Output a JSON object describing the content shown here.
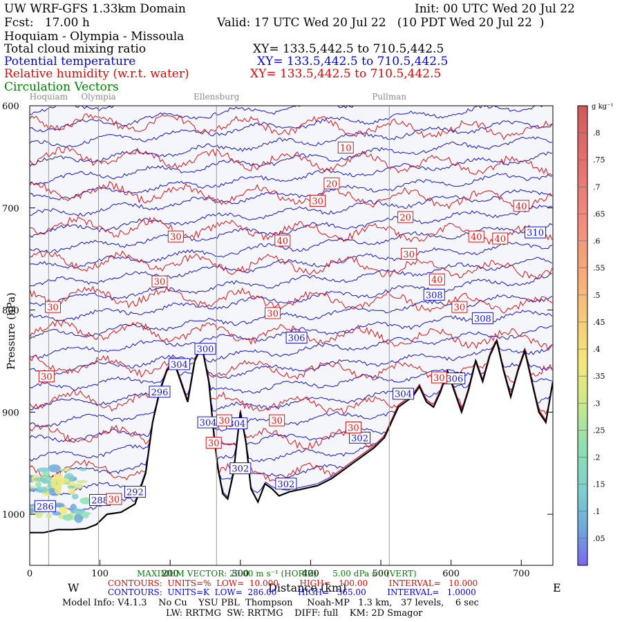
{
  "header": {
    "domain": "UW WRF-GFS 1.33km Domain",
    "init": "Init: 00 UTC Wed 20 Jul 22",
    "fcst": "Fcst:   17.00 h",
    "valid": "Valid: 17 UTC Wed 20 Jul 22   (10 PDT Wed 20 Jul 22  )",
    "route": "Hoquiam - Olympia - Missoula",
    "var1": "Total cloud mixing ratio",
    "var1_xy": "XY= 133.5,442.5 to 710.5,442.5",
    "var2": "Potential temperature",
    "var2_xy": "XY= 133.5,442.5 to 710.5,442.5",
    "var3": "Relative humidity (w.r.t. water)",
    "var3_xy": "XY= 133.5,442.5 to 710.5,442.5",
    "var4": "Circulation Vectors"
  },
  "footer": {
    "max_vector": "MAXIMUM VECTOR: 20.00 m s⁻¹ (HORIZ)      5.00 dPa s⁻¹ (VERT)",
    "red_contours": "CONTOURS:  UNITS=%  LOW=  10.000        HIGH=   100.00        INTERVAL=   10.000",
    "blue_contours": "CONTOURS:  UNITS=K  LOW=  286.00        HIGH=   365.00        INTERVAL=   1.0000",
    "model_info": "Model Info: V4.1.3    No Cu    YSU PBL  Thompson     Noah-MP   1.3 km,   37 levels,    6 sec",
    "physics": "LW: RRTMG  SW: RRTMG    DIFF: full    KM: 2D Smagor"
  },
  "chart_data": {
    "type": "cross-section",
    "xlabel": "Distance (km)",
    "ylabel": "Pressure (hPa)",
    "x_ticks": [
      "0",
      "100",
      "200",
      "300",
      "400",
      "500",
      "600",
      "700"
    ],
    "y_ticks": [
      "600",
      "700",
      "800",
      "900",
      "1000"
    ],
    "xlim": [
      0,
      745
    ],
    "ylim_hpa": [
      600,
      1050
    ],
    "west_label": "W",
    "east_label": "E",
    "locations": [
      {
        "name": "Hoquiam",
        "km": 27
      },
      {
        "name": "Olympia",
        "km": 98
      },
      {
        "name": "Ellensburg",
        "km": 266
      },
      {
        "name": "Pullman",
        "km": 512
      }
    ],
    "terrain_surface_hpa": [
      [
        0,
        1018
      ],
      [
        20,
        1018
      ],
      [
        40,
        1015
      ],
      [
        60,
        1015
      ],
      [
        80,
        1014
      ],
      [
        95,
        1010
      ],
      [
        110,
        1000
      ],
      [
        130,
        998
      ],
      [
        150,
        990
      ],
      [
        165,
        960
      ],
      [
        175,
        910
      ],
      [
        185,
        880
      ],
      [
        195,
        860
      ],
      [
        205,
        850
      ],
      [
        215,
        870
      ],
      [
        225,
        890
      ],
      [
        235,
        850
      ],
      [
        245,
        835
      ],
      [
        255,
        870
      ],
      [
        262,
        920
      ],
      [
        268,
        955
      ],
      [
        275,
        980
      ],
      [
        282,
        985
      ],
      [
        290,
        960
      ],
      [
        300,
        900
      ],
      [
        308,
        930
      ],
      [
        315,
        975
      ],
      [
        325,
        988
      ],
      [
        335,
        970
      ],
      [
        345,
        975
      ],
      [
        355,
        982
      ],
      [
        370,
        978
      ],
      [
        390,
        975
      ],
      [
        410,
        972
      ],
      [
        430,
        965
      ],
      [
        450,
        955
      ],
      [
        470,
        945
      ],
      [
        490,
        935
      ],
      [
        505,
        925
      ],
      [
        515,
        910
      ],
      [
        525,
        895
      ],
      [
        535,
        890
      ],
      [
        545,
        885
      ],
      [
        555,
        875
      ],
      [
        565,
        890
      ],
      [
        575,
        895
      ],
      [
        585,
        880
      ],
      [
        595,
        860
      ],
      [
        605,
        880
      ],
      [
        615,
        900
      ],
      [
        625,
        878
      ],
      [
        635,
        850
      ],
      [
        645,
        870
      ],
      [
        655,
        845
      ],
      [
        665,
        830
      ],
      [
        675,
        860
      ],
      [
        685,
        885
      ],
      [
        695,
        860
      ],
      [
        705,
        840
      ],
      [
        715,
        870
      ],
      [
        725,
        900
      ],
      [
        735,
        910
      ],
      [
        745,
        870
      ]
    ],
    "theta_contours_K": {
      "low": 286,
      "high": 365,
      "interval": 1
    },
    "theta_labels": [
      {
        "text": "286",
        "km": 22,
        "hpa": 992
      },
      {
        "text": "288",
        "km": 100,
        "hpa": 986
      },
      {
        "text": "292",
        "km": 150,
        "hpa": 978
      },
      {
        "text": "296",
        "km": 185,
        "hpa": 880
      },
      {
        "text": "300",
        "km": 250,
        "hpa": 838
      },
      {
        "text": "302",
        "km": 300,
        "hpa": 955
      },
      {
        "text": "302",
        "km": 365,
        "hpa": 970
      },
      {
        "text": "302",
        "km": 470,
        "hpa": 925
      },
      {
        "text": "304",
        "km": 213,
        "hpa": 853
      },
      {
        "text": "304",
        "km": 254,
        "hpa": 910
      },
      {
        "text": "304",
        "km": 295,
        "hpa": 911
      },
      {
        "text": "304",
        "km": 532,
        "hpa": 882
      },
      {
        "text": "306",
        "km": 380,
        "hpa": 827
      },
      {
        "text": "306",
        "km": 605,
        "hpa": 867
      },
      {
        "text": "308",
        "km": 576,
        "hpa": 785
      },
      {
        "text": "308",
        "km": 645,
        "hpa": 808
      },
      {
        "text": "310",
        "km": 720,
        "hpa": 724
      }
    ],
    "rh_contours_pct": {
      "low": 10,
      "high": 100,
      "interval": 10
    },
    "rh_labels": [
      {
        "text": "10",
        "km": 450,
        "hpa": 641
      },
      {
        "text": "20",
        "km": 430,
        "hpa": 676
      },
      {
        "text": "30",
        "km": 410,
        "hpa": 693
      },
      {
        "text": "20",
        "km": 535,
        "hpa": 709
      },
      {
        "text": "40",
        "km": 700,
        "hpa": 698
      },
      {
        "text": "30",
        "km": 208,
        "hpa": 728
      },
      {
        "text": "40",
        "km": 360,
        "hpa": 732
      },
      {
        "text": "40",
        "km": 636,
        "hpa": 728
      },
      {
        "text": "40",
        "km": 670,
        "hpa": 730
      },
      {
        "text": "30",
        "km": 540,
        "hpa": 745
      },
      {
        "text": "40",
        "km": 580,
        "hpa": 770
      },
      {
        "text": "30",
        "km": 185,
        "hpa": 772
      },
      {
        "text": "30",
        "km": 33,
        "hpa": 797
      },
      {
        "text": "30",
        "km": 346,
        "hpa": 803
      },
      {
        "text": "30",
        "km": 612,
        "hpa": 797
      },
      {
        "text": "30",
        "km": 24,
        "hpa": 865
      },
      {
        "text": "30",
        "km": 583,
        "hpa": 866
      },
      {
        "text": "30",
        "km": 277,
        "hpa": 908
      },
      {
        "text": "30",
        "km": 262,
        "hpa": 930
      },
      {
        "text": "30",
        "km": 352,
        "hpa": 908
      },
      {
        "text": "30",
        "km": 461,
        "hpa": 915
      },
      {
        "text": "30",
        "km": 120,
        "hpa": 985
      }
    ],
    "cloud_colorbar": {
      "unit": "g kg⁻¹",
      "labels": [
        ".05",
        ".1",
        ".15",
        ".2",
        ".25",
        ".3",
        ".35",
        ".4",
        ".45",
        ".5",
        ".55",
        ".6",
        ".65",
        ".7",
        ".75",
        ".8"
      ]
    }
  }
}
